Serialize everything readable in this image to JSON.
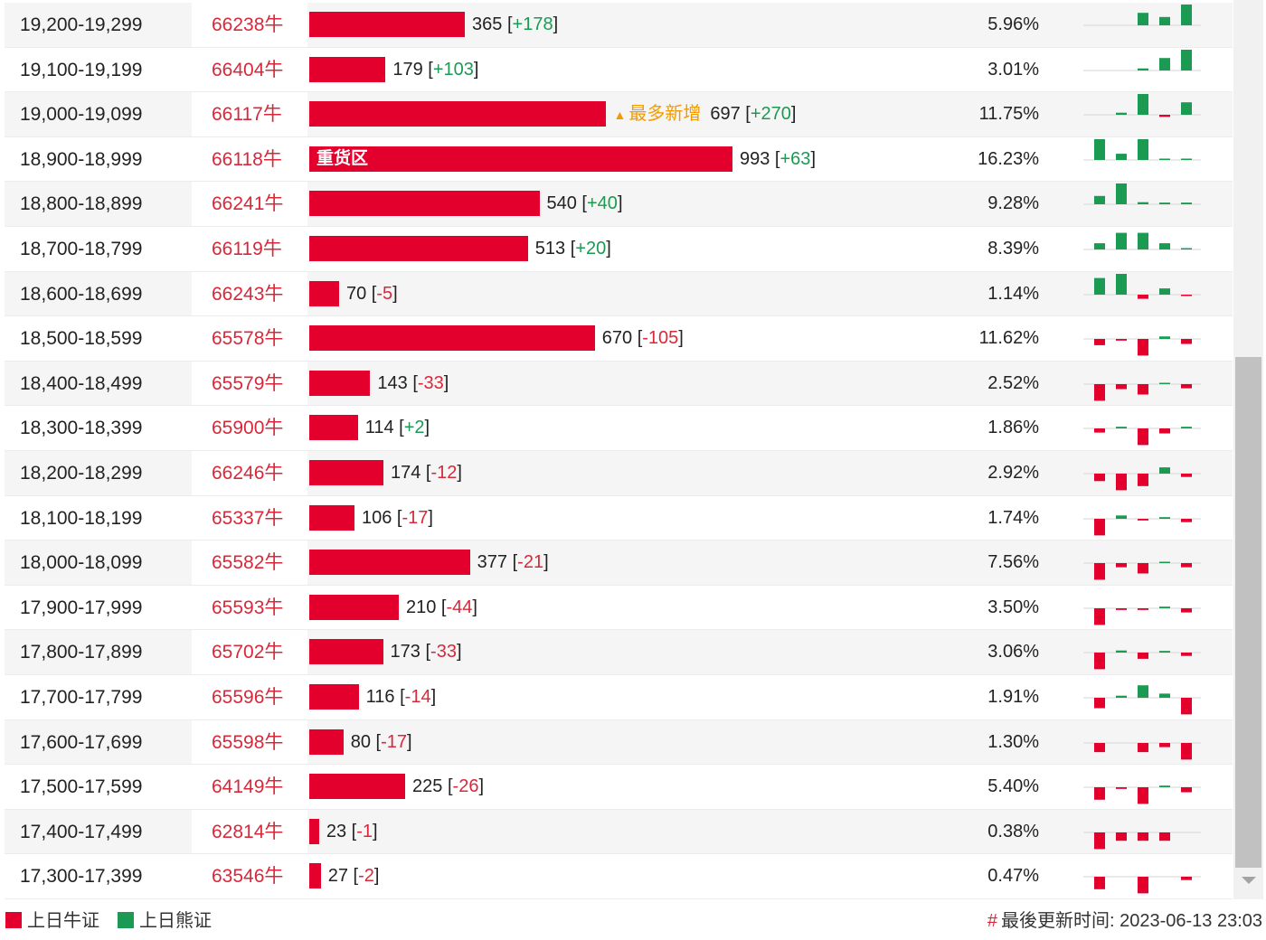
{
  "colors": {
    "bull": "#e3002d",
    "bear": "#1a9a52",
    "code": "#d8283a",
    "most_added": "#f29b00"
  },
  "rows": [
    {
      "range": "19,200-19,299",
      "code": "66238牛",
      "count": "365",
      "change": "+178",
      "pct": "5.96%",
      "bar_value": 365,
      "spark": [
        0,
        0,
        3,
        2,
        5
      ]
    },
    {
      "range": "19,100-19,199",
      "code": "66404牛",
      "count": "179",
      "change": "+103",
      "pct": "3.01%",
      "bar_value": 179,
      "spark": [
        0,
        0,
        0.5,
        3,
        5
      ]
    },
    {
      "range": "19,000-19,099",
      "code": "66117牛",
      "count": "697",
      "change": "+270",
      "pct": "11.75%",
      "bar_value": 697,
      "tag": "最多新增",
      "tag_icon": "▲",
      "spark": [
        0,
        0.5,
        5,
        -0.5,
        3
      ]
    },
    {
      "range": "18,900-18,999",
      "code": "66118牛",
      "count": "993",
      "change": "+63",
      "pct": "16.23%",
      "bar_value": 993,
      "bar_label": "重货区",
      "spark": [
        5,
        1.5,
        5,
        0.3,
        0.3
      ]
    },
    {
      "range": "18,800-18,899",
      "code": "66241牛",
      "count": "540",
      "change": "+40",
      "pct": "9.28%",
      "bar_value": 540,
      "spark": [
        2,
        5,
        0.5,
        0.4,
        0.4
      ]
    },
    {
      "range": "18,700-18,799",
      "code": "66119牛",
      "count": "513",
      "change": "+20",
      "pct": "8.39%",
      "bar_value": 513,
      "spark": [
        1.5,
        4,
        4,
        1.5,
        0.3
      ]
    },
    {
      "range": "18,600-18,699",
      "code": "66243牛",
      "count": "70",
      "change": "-5",
      "pct": "1.14%",
      "bar_value": 70,
      "spark": [
        4,
        5,
        -1,
        1.5,
        -0.3
      ]
    },
    {
      "range": "18,500-18,599",
      "code": "65578牛",
      "count": "670",
      "change": "-105",
      "pct": "11.62%",
      "bar_value": 670,
      "spark": [
        -1.5,
        -0.4,
        -4,
        0.6,
        -1.2
      ]
    },
    {
      "range": "18,400-18,499",
      "code": "65579牛",
      "count": "143",
      "change": "-33",
      "pct": "2.52%",
      "bar_value": 143,
      "spark": [
        -4,
        -1.2,
        -2.5,
        0.2,
        -1
      ]
    },
    {
      "range": "18,300-18,399",
      "code": "65900牛",
      "count": "114",
      "change": "+2",
      "pct": "1.86%",
      "bar_value": 114,
      "spark": [
        -1,
        0.4,
        -4,
        -1.2,
        0.4
      ]
    },
    {
      "range": "18,200-18,299",
      "code": "66246牛",
      "count": "174",
      "change": "-12",
      "pct": "2.92%",
      "bar_value": 174,
      "spark": [
        -1.8,
        -4,
        -3,
        1.5,
        -0.8
      ]
    },
    {
      "range": "18,100-18,199",
      "code": "65337牛",
      "count": "106",
      "change": "-17",
      "pct": "1.74%",
      "bar_value": 106,
      "spark": [
        -4,
        0.8,
        -0.4,
        0.4,
        -0.8
      ]
    },
    {
      "range": "18,000-18,099",
      "code": "65582牛",
      "count": "377",
      "change": "-21",
      "pct": "7.56%",
      "bar_value": 377,
      "spark": [
        -4,
        -1,
        -2.5,
        0.2,
        -1
      ]
    },
    {
      "range": "17,900-17,999",
      "code": "65593牛",
      "count": "210",
      "change": "-44",
      "pct": "3.50%",
      "bar_value": 210,
      "spark": [
        -4,
        -0.4,
        -0.4,
        0.4,
        -1
      ]
    },
    {
      "range": "17,800-17,899",
      "code": "65702牛",
      "count": "173",
      "change": "-33",
      "pct": "3.06%",
      "bar_value": 173,
      "spark": [
        -4,
        0.5,
        -1.5,
        0.4,
        -0.8
      ]
    },
    {
      "range": "17,700-17,799",
      "code": "65596牛",
      "count": "116",
      "change": "-14",
      "pct": "1.91%",
      "bar_value": 116,
      "spark": [
        -2.5,
        0.5,
        3,
        1,
        -4
      ]
    },
    {
      "range": "17,600-17,699",
      "code": "65598牛",
      "count": "80",
      "change": "-17",
      "pct": "1.30%",
      "bar_value": 80,
      "spark": [
        -2.2,
        0,
        -2.2,
        -1,
        -4
      ]
    },
    {
      "range": "17,500-17,599",
      "code": "64149牛",
      "count": "225",
      "change": "-26",
      "pct": "5.40%",
      "bar_value": 225,
      "spark": [
        -3,
        -0.4,
        -4,
        0.4,
        -1.2
      ]
    },
    {
      "range": "17,400-17,499",
      "code": "62814牛",
      "count": "23",
      "change": "-1",
      "pct": "0.38%",
      "bar_value": 23,
      "spark": [
        -4,
        -2,
        -2,
        -2,
        0
      ]
    },
    {
      "range": "17,300-17,399",
      "code": "63546牛",
      "count": "27",
      "change": "-2",
      "pct": "0.47%",
      "bar_value": 27,
      "spark": [
        -3,
        0,
        -4,
        0,
        -0.8
      ]
    }
  ],
  "legend": {
    "bull_label": "上日牛证",
    "bear_label": "上日熊证"
  },
  "update": {
    "hash": "#",
    "label": "最後更新时间: 2023-06-13 23:03"
  }
}
